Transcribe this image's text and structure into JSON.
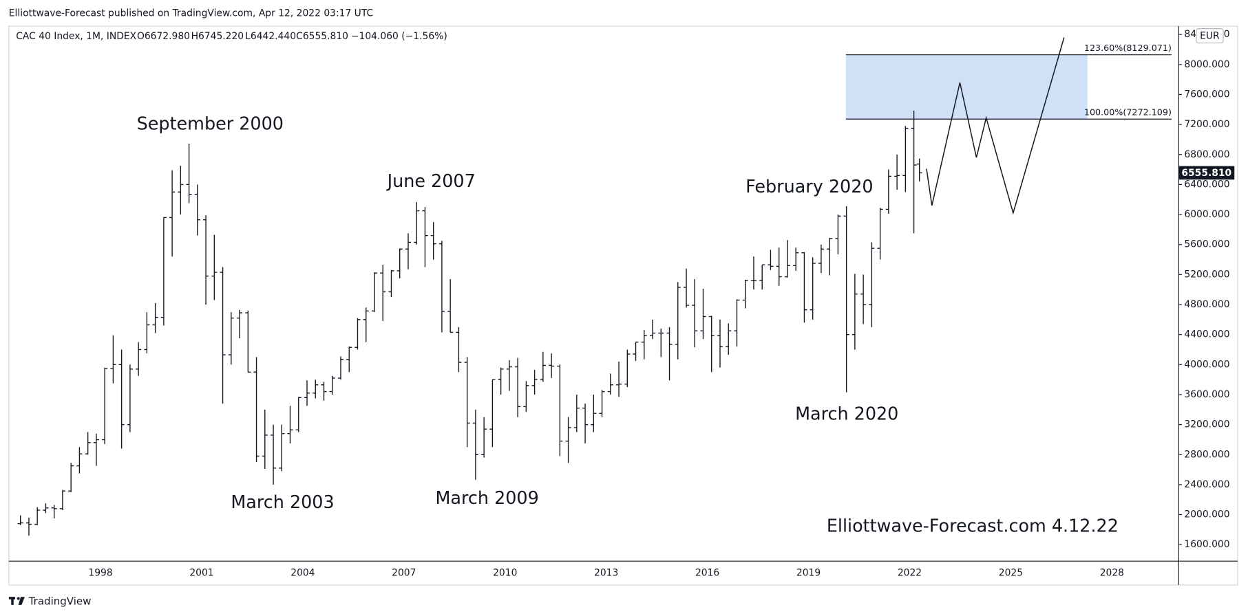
{
  "header": "Elliottwave-Forecast published on TradingView.com, Apr 12, 2022 03:17 UTC",
  "footer": "TradingView",
  "chart_data": {
    "type": "ohlc",
    "symbol": "CAC 40 Index, 1M, INDEX",
    "legend_values": [
      "O6672.980",
      "H6745.220",
      "L6442.440",
      "C6555.810",
      "−104.060 (−1.56%)"
    ],
    "currency": "EUR",
    "color": "#131722",
    "x": [
      1995.625,
      1995.875,
      1996.125,
      1996.375,
      1996.625,
      1996.875,
      1997.125,
      1997.375,
      1997.625,
      1997.875,
      1998.125,
      1998.375,
      1998.625,
      1998.875,
      1999.125,
      1999.375,
      1999.625,
      1999.875,
      2000.125,
      2000.375,
      2000.625,
      2000.875,
      2001.125,
      2001.375,
      2001.625,
      2001.875,
      2002.125,
      2002.375,
      2002.625,
      2002.875,
      2003.125,
      2003.375,
      2003.625,
      2003.875,
      2004.125,
      2004.375,
      2004.625,
      2004.875,
      2005.125,
      2005.375,
      2005.625,
      2005.875,
      2006.125,
      2006.375,
      2006.625,
      2006.875,
      2007.125,
      2007.375,
      2007.625,
      2007.875,
      2008.125,
      2008.375,
      2008.625,
      2008.875,
      2009.125,
      2009.375,
      2009.625,
      2009.875,
      2010.125,
      2010.375,
      2010.625,
      2010.875,
      2011.125,
      2011.375,
      2011.625,
      2011.875,
      2012.125,
      2012.375,
      2012.625,
      2012.875,
      2013.125,
      2013.375,
      2013.625,
      2013.875,
      2014.125,
      2014.375,
      2014.625,
      2014.875,
      2015.125,
      2015.375,
      2015.625,
      2015.875,
      2016.125,
      2016.375,
      2016.625,
      2016.875,
      2017.125,
      2017.375,
      2017.625,
      2017.875,
      2018.125,
      2018.375,
      2018.625,
      2018.875,
      2019.125,
      2019.375,
      2019.625,
      2019.875,
      2020.125,
      2020.375,
      2020.625,
      2020.875,
      2021.125,
      2021.375,
      2021.625,
      2021.875,
      2022.125,
      2022.29
    ],
    "open": [
      1880,
      1890,
      1872,
      2060,
      2090,
      2080,
      2315,
      2650,
      2810,
      2960,
      2999,
      3950,
      4000,
      3200,
      3940,
      4200,
      4530,
      4630,
      5960,
      6300,
      6400,
      6270,
      5930,
      5180,
      5230,
      4130,
      4620,
      4690,
      3900,
      2780,
      3060,
      2620,
      3080,
      3130,
      3560,
      3620,
      3730,
      3640,
      3820,
      4070,
      4230,
      4600,
      4715,
      5220,
      4970,
      5250,
      5540,
      5630,
      6050,
      5720,
      5610,
      4710,
      4430,
      4030,
      3220,
      2800,
      3140,
      3800,
      3940,
      3970,
      3440,
      3720,
      3800,
      3990,
      3980,
      2980,
      3160,
      3420,
      3200,
      3350,
      3640,
      3730,
      3740,
      4140,
      4300,
      4390,
      4420,
      4420,
      4270,
      5030,
      4790,
      4450,
      4640,
      4390,
      4240,
      4450,
      4860,
      5120,
      5120,
      5330,
      5310,
      5170,
      5320,
      5490,
      4730,
      5350,
      5540,
      5680,
      5980,
      4400,
      4940,
      4800,
      5550,
      6070,
      6510,
      6520,
      7150,
      6672.98
    ],
    "high": [
      1990,
      1960,
      2100,
      2150,
      2130,
      2330,
      2690,
      2900,
      3100,
      3080,
      3960,
      4390,
      4200,
      4000,
      4300,
      4700,
      4820,
      5960,
      6590,
      6650,
      6944,
      6400,
      5990,
      5730,
      5300,
      4700,
      4730,
      4720,
      4100,
      3400,
      3200,
      3200,
      3450,
      3570,
      3790,
      3800,
      3770,
      3850,
      4110,
      4240,
      4620,
      4760,
      5230,
      5330,
      5260,
      5550,
      5750,
      6168,
      6100,
      5900,
      5650,
      5140,
      4500,
      4100,
      3400,
      3300,
      3800,
      3960,
      4060,
      4090,
      3780,
      3930,
      4170,
      4150,
      4000,
      3300,
      3600,
      3480,
      3600,
      3660,
      3880,
      4040,
      4200,
      4300,
      4460,
      4600,
      4480,
      4500,
      5100,
      5280,
      5140,
      5010,
      4650,
      4600,
      4550,
      4870,
      5130,
      5440,
      5330,
      5530,
      5560,
      5660,
      5560,
      5500,
      5430,
      5600,
      5690,
      6000,
      6110,
      5210,
      5200,
      5630,
      6090,
      6600,
      6800,
      7180,
      7385,
      6745.22
    ],
    "low": [
      1860,
      1720,
      1860,
      2020,
      1950,
      2060,
      2300,
      2550,
      2800,
      2650,
      2940,
      3750,
      2880,
      3100,
      3850,
      4150,
      4420,
      4520,
      5440,
      6000,
      6150,
      5720,
      4800,
      4860,
      3480,
      4000,
      4350,
      3900,
      2700,
      2610,
      2400,
      2580,
      2950,
      3100,
      3450,
      3550,
      3520,
      3600,
      3800,
      3900,
      4200,
      4300,
      4700,
      4580,
      4900,
      5150,
      5270,
      5600,
      5300,
      5400,
      4430,
      4430,
      3900,
      2900,
      2465,
      2760,
      2900,
      3600,
      3650,
      3300,
      3370,
      3600,
      3770,
      3820,
      2780,
      2690,
      3100,
      2950,
      3100,
      3300,
      3600,
      3570,
      3700,
      4050,
      4070,
      4340,
      4100,
      3790,
      4070,
      4760,
      4230,
      4340,
      3900,
      3960,
      4130,
      4240,
      4750,
      5000,
      5000,
      5260,
      5050,
      5160,
      5250,
      4560,
      4600,
      5220,
      5190,
      5470,
      3632,
      4200,
      4540,
      4500,
      5400,
      6010,
      6330,
      6300,
      5750,
      6442.44
    ],
    "close": [
      1890,
      1872,
      2060,
      2090,
      2080,
      2315,
      2650,
      2810,
      2960,
      2999,
      3950,
      4000,
      3200,
      3940,
      4200,
      4530,
      4630,
      5960,
      6300,
      6400,
      6270,
      5930,
      5180,
      5230,
      4130,
      4620,
      4690,
      3900,
      2780,
      3060,
      2620,
      3080,
      3130,
      3560,
      3620,
      3730,
      3640,
      3820,
      4070,
      4230,
      4600,
      4715,
      5220,
      4970,
      5250,
      5540,
      5630,
      6050,
      5720,
      5610,
      4710,
      4430,
      4030,
      3220,
      2800,
      3140,
      3800,
      3940,
      3970,
      3440,
      3720,
      3800,
      3990,
      3980,
      2980,
      3160,
      3420,
      3200,
      3350,
      3640,
      3730,
      3740,
      4140,
      4300,
      4390,
      4420,
      4420,
      4270,
      5030,
      4790,
      4450,
      4640,
      4390,
      4240,
      4450,
      4860,
      5120,
      5120,
      5330,
      5310,
      5170,
      5320,
      5490,
      4730,
      5350,
      5540,
      5680,
      5980,
      4400,
      4940,
      4800,
      5550,
      6070,
      6510,
      6520,
      7150,
      6660,
      6555.81
    ],
    "xlim": [
      1995.28,
      2029.98
    ],
    "xticks": [
      1998,
      2001,
      2004,
      2007,
      2010,
      2013,
      2016,
      2019,
      2022,
      2025,
      2028
    ],
    "ylim": [
      1380,
      8510
    ],
    "yticks": [
      {
        "value": 1600,
        "label": "1600.000"
      },
      {
        "value": 2000,
        "label": "2000.000"
      },
      {
        "value": 2400,
        "label": "2400.000"
      },
      {
        "value": 2800,
        "label": "2800.000"
      },
      {
        "value": 3200,
        "label": "3200.000"
      },
      {
        "value": 3600,
        "label": "3600.000"
      },
      {
        "value": 4000,
        "label": "4000.000"
      },
      {
        "value": 4400,
        "label": "4400.000"
      },
      {
        "value": 4800,
        "label": "4800.000"
      },
      {
        "value": 5200,
        "label": "5200.000"
      },
      {
        "value": 5600,
        "label": "5600.000"
      },
      {
        "value": 6000,
        "label": "6000.000"
      },
      {
        "value": 6400,
        "label": "6400.000"
      },
      {
        "value": 6800,
        "label": "6800.000"
      },
      {
        "value": 7200,
        "label": "7200.000"
      },
      {
        "value": 7600,
        "label": "7600.000"
      },
      {
        "value": 8000,
        "label": "8000.000"
      },
      {
        "value": 8400,
        "label": "8400.000"
      }
    ],
    "grid": false,
    "last_price": {
      "value": 6555.81,
      "label": "6555.810"
    },
    "zone": {
      "x": [
        2020.11,
        2027.27
      ],
      "color": "#cfe0f7",
      "levels": [
        {
          "value": 8129.071,
          "label": "123.60%(8129.071)"
        },
        {
          "value": 7272.109,
          "label": "100.00%(7272.109)"
        }
      ]
    },
    "projection": {
      "x": [
        2022.5,
        2022.66,
        2023.49,
        2023.98,
        2024.27,
        2025.07,
        2026.58
      ],
      "values": [
        6610,
        6120,
        7760,
        6760,
        7290,
        6020,
        8360
      ]
    },
    "annotations": [
      "September 2000",
      "June 2007",
      "March 2003",
      "March 2009",
      "February 2020",
      "March 2020"
    ],
    "watermark": "Elliottwave-Forecast.com 4.12.22"
  }
}
